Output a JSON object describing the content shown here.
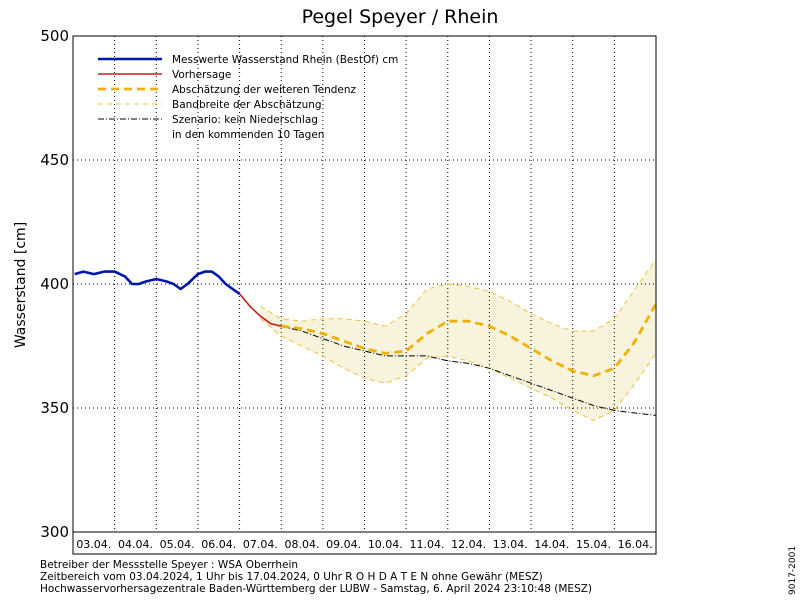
{
  "chart_data": {
    "type": "line",
    "title": "Pegel Speyer / Rhein",
    "ylabel": "Wasserstand [cm]",
    "xlabel": "",
    "ylim": [
      300,
      500
    ],
    "yticks": [
      300,
      350,
      400,
      450,
      500
    ],
    "xlim": [
      "2024-04-03T00:00",
      "2024-04-17T00:00"
    ],
    "x_tick_labels": [
      "03.04.",
      "04.04.",
      "05.04.",
      "06.04.",
      "07.04.",
      "08.04.",
      "09.04.",
      "10.04.",
      "11.04.",
      "12.04.",
      "13.04.",
      "14.04.",
      "15.04.",
      "16.04."
    ],
    "grid": true,
    "legend_position": "top-left",
    "legend": [
      {
        "label": "Messwerte Wasserstand Rhein (BestOf)  cm",
        "style": "thick-solid",
        "color": "#0018a8"
      },
      {
        "label": "Vorhersage",
        "style": "solid",
        "color": "#c81e1e"
      },
      {
        "label": "Abschätzung der weiteren Tendenz",
        "style": "thick-dashed",
        "color": "#f0b000"
      },
      {
        "label": "Bandbreite der Abschätzung",
        "style": "thin-dashed",
        "color": "#f0c040"
      },
      {
        "label": "Szenario: kein Niederschlag",
        "style": "dash-dot",
        "color": "#000000"
      },
      {
        "label": "in den kommenden 10 Tagen",
        "style": "none",
        "color": ""
      }
    ],
    "series": [
      {
        "name": "Messwerte Wasserstand Rhein (BestOf)  cm",
        "color": "#0018a8",
        "x": [
          "2024-04-03T01:00",
          "2024-04-03T06:00",
          "2024-04-03T12:00",
          "2024-04-03T18:00",
          "2024-04-04T00:00",
          "2024-04-04T06:00",
          "2024-04-04T10:00",
          "2024-04-04T14:00",
          "2024-04-04T18:00",
          "2024-04-05T00:00",
          "2024-04-05T06:00",
          "2024-04-05T10:00",
          "2024-04-05T14:00",
          "2024-04-05T18:00",
          "2024-04-06T00:00",
          "2024-04-06T04:00",
          "2024-04-06T08:00",
          "2024-04-06T12:00",
          "2024-04-06T16:00",
          "2024-04-06T20:00",
          "2024-04-07T00:00"
        ],
        "values": [
          404,
          405,
          404,
          405,
          405,
          403,
          400,
          400,
          401,
          402,
          401,
          400,
          398,
          400,
          404,
          405,
          405,
          403,
          400,
          398,
          396
        ]
      },
      {
        "name": "Vorhersage",
        "color": "#c81e1e",
        "x": [
          "2024-04-07T00:00",
          "2024-04-07T06:00",
          "2024-04-07T12:00",
          "2024-04-07T18:00",
          "2024-04-08T00:00"
        ],
        "values": [
          396,
          391,
          387,
          384,
          383
        ]
      },
      {
        "name": "Abschätzung der weiteren Tendenz",
        "color": "#f0b000",
        "x": [
          "2024-04-08T00:00",
          "2024-04-08T12:00",
          "2024-04-09T00:00",
          "2024-04-09T12:00",
          "2024-04-10T00:00",
          "2024-04-10T12:00",
          "2024-04-11T00:00",
          "2024-04-11T12:00",
          "2024-04-12T00:00",
          "2024-04-12T12:00",
          "2024-04-13T00:00",
          "2024-04-13T12:00",
          "2024-04-14T00:00",
          "2024-04-14T12:00",
          "2024-04-15T00:00",
          "2024-04-15T12:00",
          "2024-04-16T00:00",
          "2024-04-16T12:00",
          "2024-04-17T00:00"
        ],
        "values": [
          383,
          382,
          380,
          377,
          374,
          372,
          373,
          380,
          385,
          385,
          383,
          379,
          374,
          369,
          365,
          363,
          366,
          377,
          392
        ]
      },
      {
        "name": "Bandbreite der Abschätzung (oben)",
        "color": "#f0c040",
        "x": [
          "2024-04-07T12:00",
          "2024-04-08T00:00",
          "2024-04-08T12:00",
          "2024-04-09T00:00",
          "2024-04-09T12:00",
          "2024-04-10T00:00",
          "2024-04-10T12:00",
          "2024-04-11T00:00",
          "2024-04-11T12:00",
          "2024-04-12T00:00",
          "2024-04-12T12:00",
          "2024-04-13T00:00",
          "2024-04-13T12:00",
          "2024-04-14T00:00",
          "2024-04-14T12:00",
          "2024-04-15T00:00",
          "2024-04-15T12:00",
          "2024-04-16T00:00",
          "2024-04-16T12:00",
          "2024-04-17T00:00"
        ],
        "values": [
          391,
          386,
          385,
          386,
          386,
          385,
          383,
          388,
          398,
          400,
          399,
          397,
          393,
          388,
          384,
          381,
          381,
          386,
          398,
          410
        ]
      },
      {
        "name": "Bandbreite der Abschätzung (unten)",
        "color": "#f0c040",
        "x": [
          "2024-04-07T12:00",
          "2024-04-08T00:00",
          "2024-04-08T12:00",
          "2024-04-09T00:00",
          "2024-04-09T12:00",
          "2024-04-10T00:00",
          "2024-04-10T12:00",
          "2024-04-11T00:00",
          "2024-04-11T12:00",
          "2024-04-12T00:00",
          "2024-04-12T12:00",
          "2024-04-13T00:00",
          "2024-04-13T12:00",
          "2024-04-14T00:00",
          "2024-04-14T12:00",
          "2024-04-15T00:00",
          "2024-04-15T12:00",
          "2024-04-16T00:00",
          "2024-04-16T12:00",
          "2024-04-17T00:00"
        ],
        "values": [
          386,
          379,
          375,
          371,
          366,
          362,
          360,
          363,
          370,
          371,
          369,
          366,
          362,
          358,
          354,
          349,
          345,
          349,
          360,
          372
        ]
      },
      {
        "name": "Szenario: kein Niederschlag",
        "color": "#000000",
        "x": [
          "2024-04-08T00:00",
          "2024-04-08T12:00",
          "2024-04-09T00:00",
          "2024-04-09T12:00",
          "2024-04-10T00:00",
          "2024-04-10T12:00",
          "2024-04-11T00:00",
          "2024-04-11T12:00",
          "2024-04-12T00:00",
          "2024-04-12T12:00",
          "2024-04-13T00:00",
          "2024-04-13T12:00",
          "2024-04-14T00:00",
          "2024-04-14T12:00",
          "2024-04-15T00:00",
          "2024-04-15T12:00",
          "2024-04-16T00:00",
          "2024-04-16T12:00",
          "2024-04-17T00:00"
        ],
        "values": [
          383,
          381,
          378,
          375,
          373,
          371,
          371,
          371,
          369,
          368,
          366,
          363,
          360,
          357,
          354,
          351,
          349,
          348,
          347
        ]
      }
    ]
  },
  "footer": {
    "line1": "Betreiber der Messstelle Speyer : WSA Oberrhein",
    "line2": "Zeitbereich vom 03.04.2024, 1 Uhr bis 17.04.2024, 0 Uhr    R O H D A T E N ohne Gewähr (MESZ)",
    "line3": "Hochwasservorhersagezentrale Baden-Württemberg der LUBW - Samstag, 6. April 2024 23:10:48 (MESZ)",
    "side_code": "9017-2001"
  },
  "colors": {
    "axis": "#000000",
    "band_fill": "#f7f3dc"
  }
}
